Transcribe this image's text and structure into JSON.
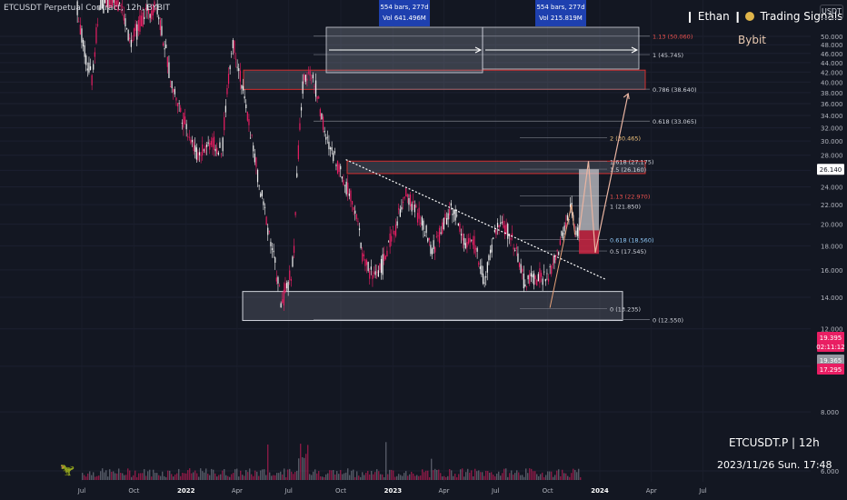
{
  "chart_title": "ETCUSDT Perpetual Contract, 12h, BYBIT",
  "brand": {
    "left": "Ethan",
    "right": "Trading Signals",
    "exchange": "Bybit"
  },
  "currency": "USDT",
  "symbol_label": "ETCUSDT.P  | 12h",
  "timestamp": "2023/11/26 Sun. 17:48",
  "logo_icon": "dinosaur-icon",
  "colors": {
    "background": "#131722",
    "candle": "#e91e63",
    "zone_border": "#d32f2f",
    "fib_text": "#d1d4dc",
    "arrow": "#e9b4a1"
  },
  "measure_labels": [
    {
      "line1": "554 bars, 277d",
      "line2": "Vol 641.496M"
    },
    {
      "line1": "554 bars, 277d",
      "line2": "Vol 215.819M"
    }
  ],
  "price_tags": {
    "current": "26.140",
    "stack": [
      "19.395",
      "02:11:12",
      "19.365",
      "17.295"
    ]
  },
  "fib_levels_upper": [
    {
      "label": "1.13 (50.060)",
      "value": 50.06
    },
    {
      "label": "1 (45.745)",
      "value": 45.745
    },
    {
      "label": "0.786 (38.640)",
      "value": 38.64
    },
    {
      "label": "0.618 (33.065)",
      "value": 33.065
    },
    {
      "label": "0 (12.550)",
      "value": 12.55
    }
  ],
  "fib_levels_lower": [
    {
      "label": "2 (30.465)",
      "value": 30.465
    },
    {
      "label": "1.618 (27.175)",
      "value": 27.175
    },
    {
      "label": "1.5 (26.160)",
      "value": 26.16
    },
    {
      "label": "1.13 (22.970)",
      "value": 22.97
    },
    {
      "label": "1 (21.850)",
      "value": 21.85
    },
    {
      "label": "0.618 (18.560)",
      "value": 18.56
    },
    {
      "label": "0.5 (17.545)",
      "value": 17.545
    },
    {
      "label": "0 (13.235)",
      "value": 13.235
    }
  ],
  "chart_data": {
    "type": "candlestick",
    "title": "ETCUSDT Perpetual Contract, 12h, BYBIT",
    "y_scale": "log",
    "ylim": [
      6.0,
      52.0
    ],
    "y_ticks": [
      6,
      8,
      10,
      12,
      14,
      16,
      18,
      20,
      22,
      24,
      26,
      28,
      30,
      32,
      34,
      36,
      38,
      40,
      42,
      44,
      46,
      48,
      50
    ],
    "y_tick_labels": [
      "6.000",
      "8.000",
      "10.000",
      "12.000",
      "14.000",
      "16.000",
      "18.000",
      "20.000",
      "22.000",
      "24.000",
      "26.000",
      "28.000",
      "30.000",
      "32.000",
      "34.000",
      "36.000",
      "38.000",
      "40.000",
      "42.000",
      "44.000",
      "46.000",
      "48.000",
      "50.000"
    ],
    "x_ticks": [
      "Jul",
      "Oct",
      "2022",
      "Apr",
      "Jul",
      "Oct",
      "2023",
      "Apr",
      "Jul",
      "Oct",
      "2024",
      "Apr",
      "Jul"
    ],
    "price_path": [
      [
        "2021-06-20",
        60
      ],
      [
        "2021-07-05",
        46
      ],
      [
        "2021-07-20",
        40
      ],
      [
        "2021-08-05",
        66
      ],
      [
        "2021-09-05",
        60
      ],
      [
        "2021-09-25",
        48
      ],
      [
        "2021-10-20",
        56
      ],
      [
        "2021-11-10",
        58
      ],
      [
        "2021-12-05",
        40
      ],
      [
        "2021-12-25",
        34
      ],
      [
        "2022-01-20",
        28
      ],
      [
        "2022-02-15",
        30
      ],
      [
        "2022-03-05",
        28
      ],
      [
        "2022-03-25",
        49
      ],
      [
        "2022-04-15",
        36
      ],
      [
        "2022-05-10",
        24
      ],
      [
        "2022-05-25",
        20
      ],
      [
        "2022-06-18",
        13.5
      ],
      [
        "2022-07-01",
        15
      ],
      [
        "2022-07-10",
        17
      ],
      [
        "2022-07-25",
        38
      ],
      [
        "2022-08-05",
        43
      ],
      [
        "2022-08-20",
        38
      ],
      [
        "2022-09-05",
        30
      ],
      [
        "2022-09-20",
        28
      ],
      [
        "2022-10-05",
        25
      ],
      [
        "2022-10-25",
        22
      ],
      [
        "2022-11-09",
        17
      ],
      [
        "2022-11-25",
        15.5
      ],
      [
        "2022-12-15",
        16.5
      ],
      [
        "2023-01-10",
        20.5
      ],
      [
        "2023-01-25",
        23
      ],
      [
        "2023-02-15",
        21
      ],
      [
        "2023-03-10",
        17.5
      ],
      [
        "2023-03-25",
        19
      ],
      [
        "2023-04-15",
        22
      ],
      [
        "2023-05-05",
        18.5
      ],
      [
        "2023-05-25",
        18
      ],
      [
        "2023-06-12",
        15
      ],
      [
        "2023-07-01",
        19.5
      ],
      [
        "2023-07-15",
        20
      ],
      [
        "2023-08-05",
        18
      ],
      [
        "2023-08-20",
        15
      ],
      [
        "2023-09-10",
        15.5
      ],
      [
        "2023-10-01",
        15.3
      ],
      [
        "2023-10-20",
        17.5
      ],
      [
        "2023-11-05",
        20.5
      ],
      [
        "2023-11-12",
        22
      ],
      [
        "2023-11-18",
        19
      ],
      [
        "2023-11-26",
        19.4
      ]
    ],
    "zones": [
      {
        "name": "supply-zone-upper",
        "y": [
          38.6,
          42.4
        ]
      },
      {
        "name": "supply-zone-mid",
        "y": [
          25.6,
          27.2
        ]
      },
      {
        "name": "demand-zone",
        "y": [
          12.5,
          14.4
        ]
      }
    ],
    "trendline": [
      [
        "2022-10-10",
        27.4
      ],
      [
        "2024-01-10",
        15.3
      ]
    ],
    "projection_path": [
      [
        "2023-11-26",
        19.4
      ],
      [
        "2023-12-12",
        27.2
      ],
      [
        "2023-12-24",
        17.4
      ],
      [
        "2024-02-20",
        37.8
      ]
    ],
    "volume_axis": [
      6,
      12
    ]
  }
}
